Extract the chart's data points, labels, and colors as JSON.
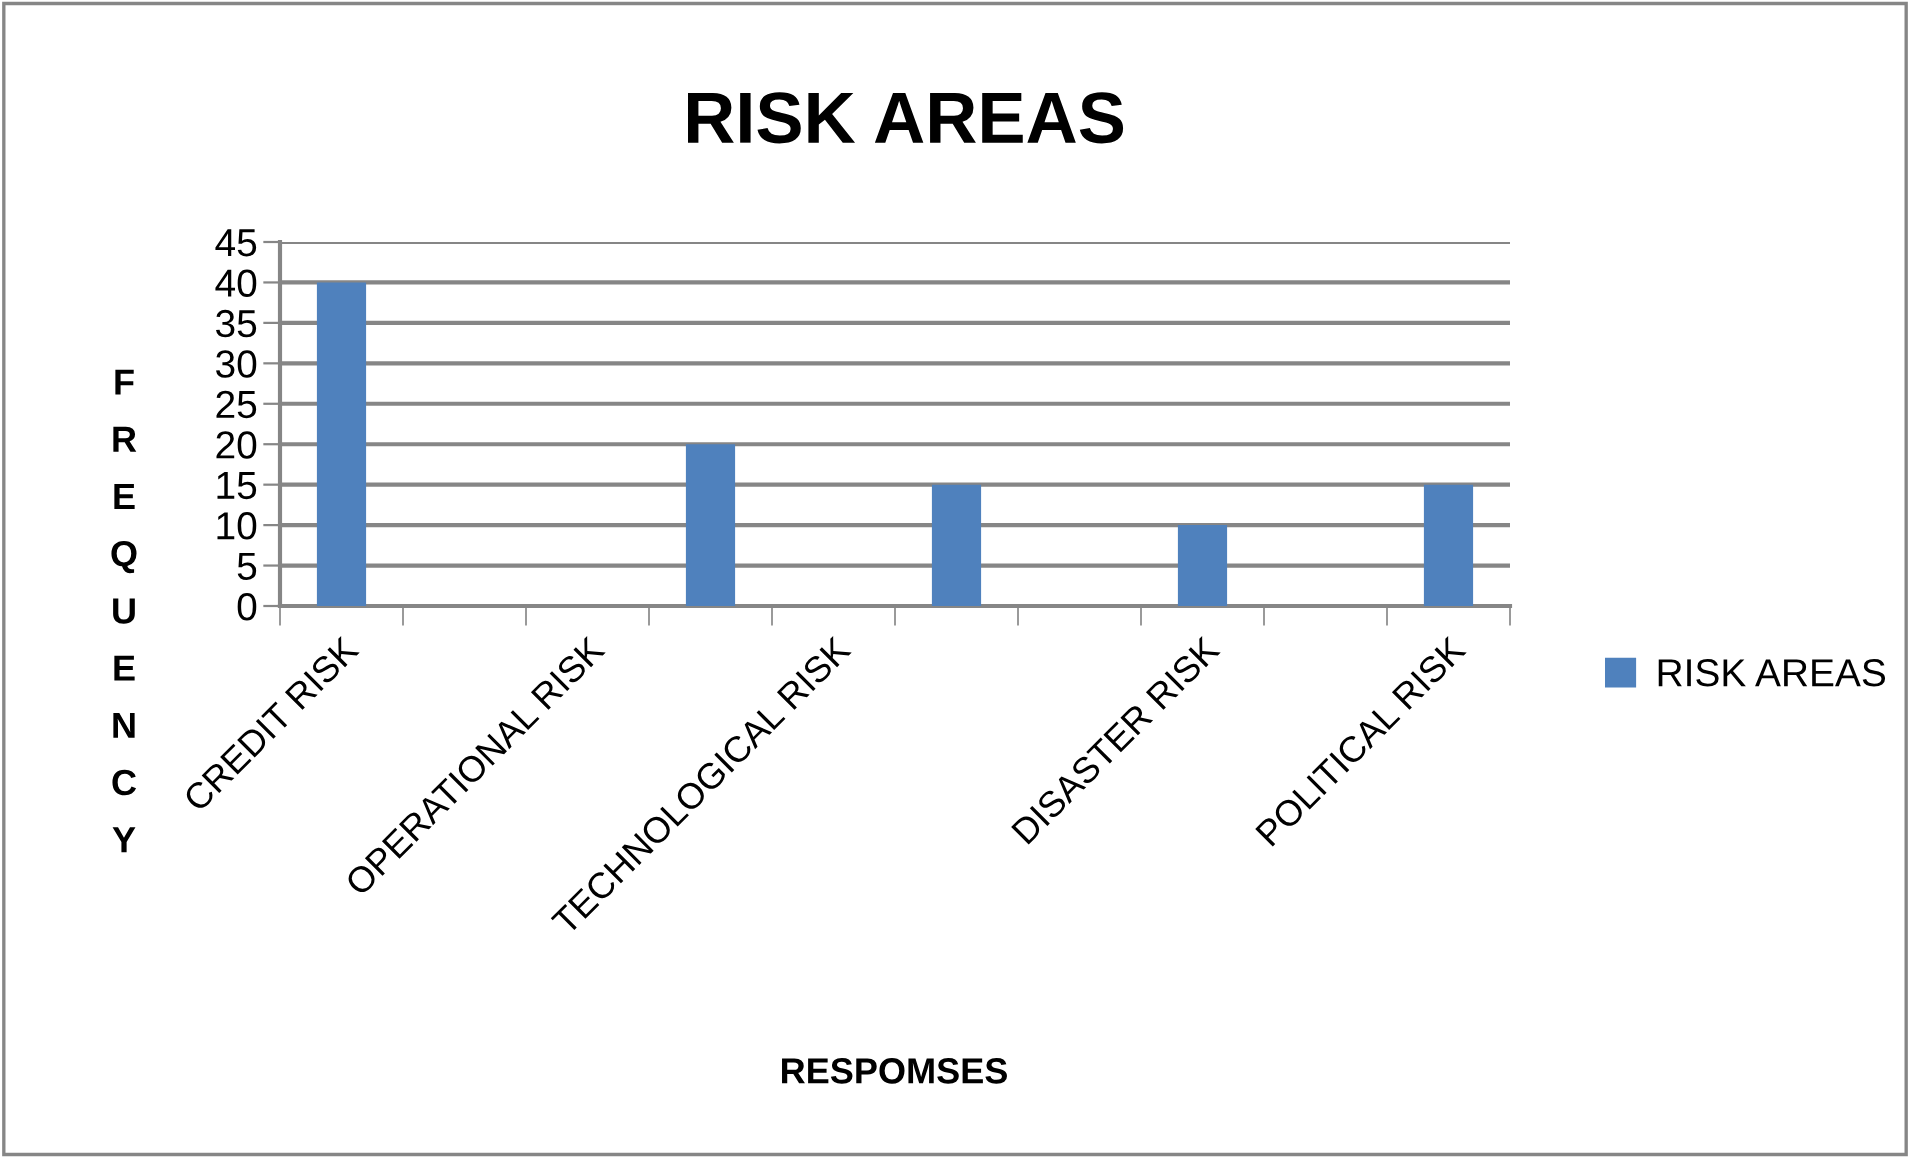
{
  "chart_data": {
    "type": "bar",
    "title": "RISK AREAS",
    "xlabel": "RESPOMSES",
    "ylabel": "FREQUENCY",
    "categories": [
      "CREDIT RISK",
      null,
      "OPERATIONAL RISK",
      null,
      "TECHNOLOGICAL RISK",
      null,
      null,
      "DISASTER RISK",
      null,
      "POLITICAL RISK"
    ],
    "series": [
      {
        "name": "RISK AREAS",
        "color": "#4f81bd",
        "values": [
          40,
          null,
          null,
          20,
          null,
          15,
          null,
          10,
          null,
          15
        ]
      }
    ],
    "ylim": [
      0,
      45
    ],
    "yticks": [
      0,
      5,
      10,
      15,
      20,
      25,
      30,
      35,
      40,
      45
    ],
    "grid": "y",
    "legend": "right"
  }
}
